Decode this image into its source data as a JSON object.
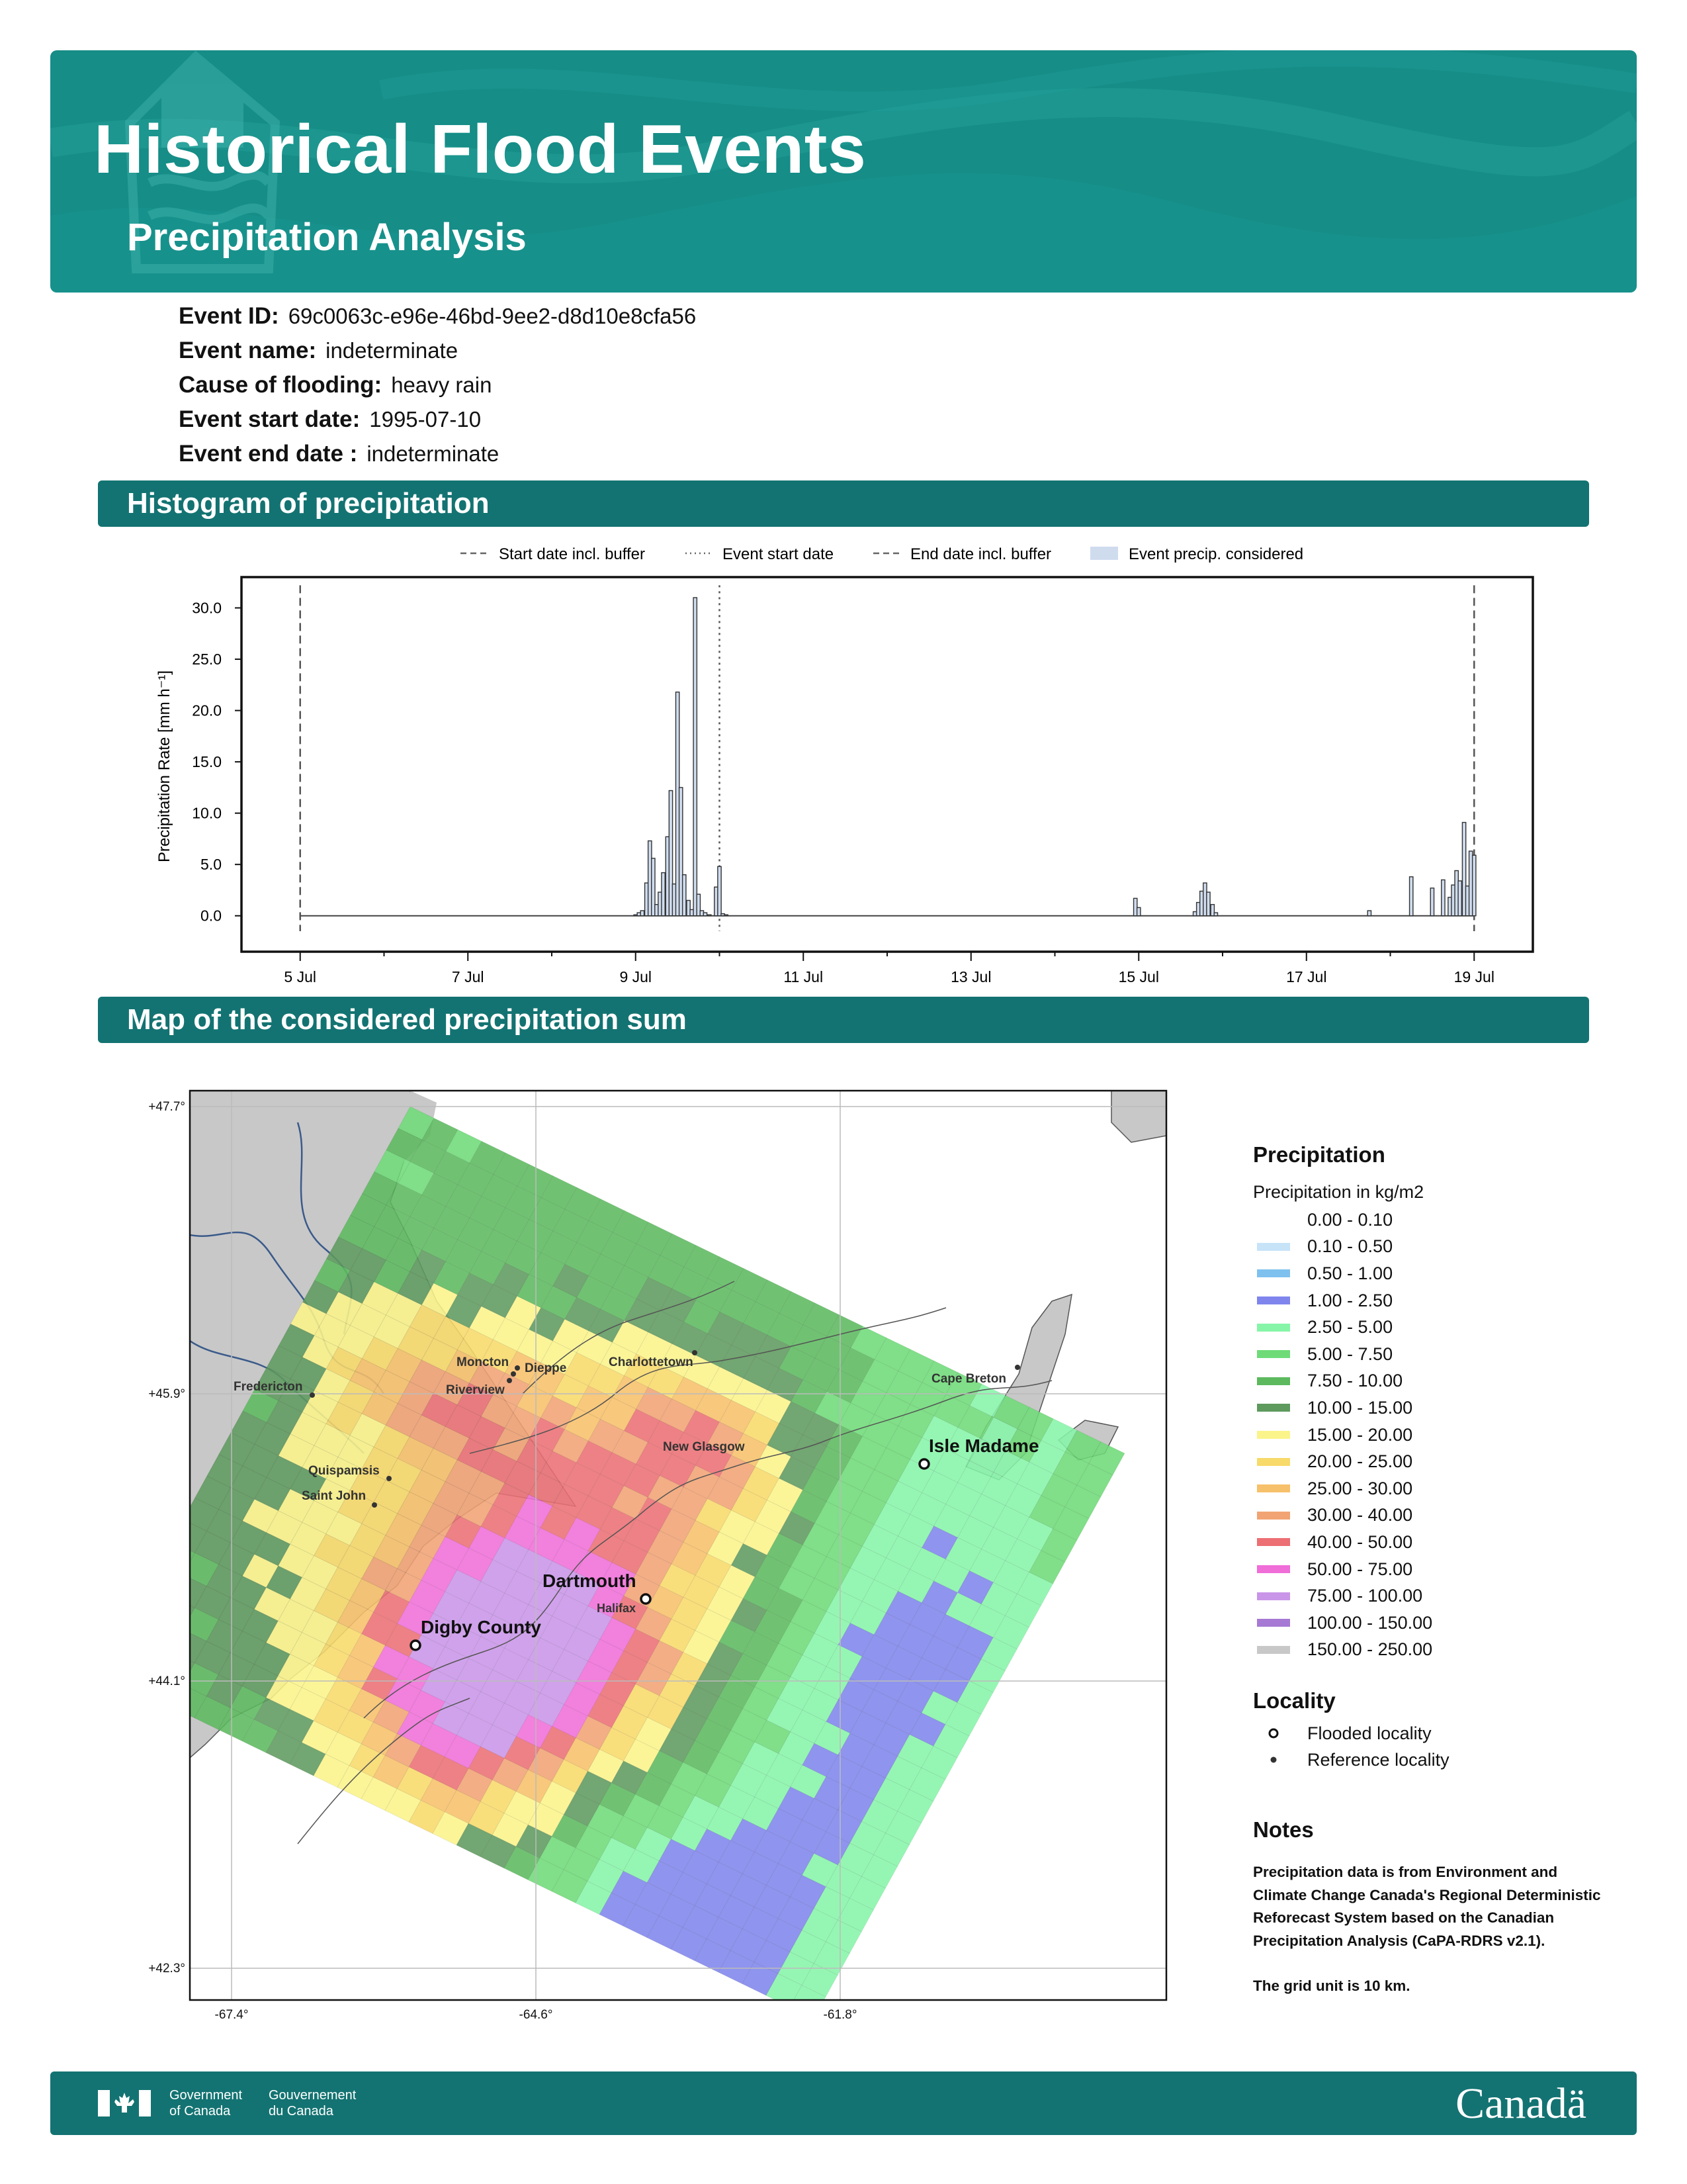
{
  "header": {
    "title": "Historical Flood Events",
    "subtitle": "Precipitation Analysis"
  },
  "event": {
    "id_label": "Event ID:",
    "id_value": "69c0063c-e96e-46bd-9ee2-d8d10e8cfa56",
    "name_label": "Event name:",
    "name_value": "indeterminate",
    "cause_label": "Cause of flooding:",
    "cause_value": "heavy rain",
    "start_label": "Event start date:",
    "start_value": "1995-07-10",
    "end_label": "Event end date :",
    "end_value": "indeterminate"
  },
  "sections": {
    "histogram_title": "Histogram of precipitation",
    "map_title": "Map of the considered precipitation sum"
  },
  "chart_data": {
    "type": "bar",
    "ylabel": "Precipitation Rate [mm h⁻¹]",
    "yticks": [
      "0.0",
      "5.0",
      "10.0",
      "15.0",
      "20.0",
      "25.0",
      "30.0"
    ],
    "ylim": [
      -3.5,
      33
    ],
    "xticks": [
      "5 Jul",
      "7 Jul",
      "9 Jul",
      "11 Jul",
      "13 Jul",
      "15 Jul",
      "17 Jul",
      "19 Jul"
    ],
    "xlim_days": [
      4.3,
      19.7
    ],
    "legend": [
      "Start date incl. buffer",
      "Event start date",
      "End date incl. buffer",
      "Event precip. considered"
    ],
    "legend_position": "top-center",
    "start_buffer_day": 5.0,
    "event_start_day": 10.0,
    "end_buffer_day": 19.0,
    "hours": [
      {
        "d": 9.0,
        "v": 0.1
      },
      {
        "d": 9.04,
        "v": 0.3
      },
      {
        "d": 9.08,
        "v": 0.5
      },
      {
        "d": 9.13,
        "v": 3.2
      },
      {
        "d": 9.17,
        "v": 7.3
      },
      {
        "d": 9.21,
        "v": 5.6
      },
      {
        "d": 9.25,
        "v": 1.1
      },
      {
        "d": 9.29,
        "v": 2.3
      },
      {
        "d": 9.33,
        "v": 4.2
      },
      {
        "d": 9.38,
        "v": 7.7
      },
      {
        "d": 9.42,
        "v": 12.2
      },
      {
        "d": 9.46,
        "v": 3.1
      },
      {
        "d": 9.5,
        "v": 21.8
      },
      {
        "d": 9.54,
        "v": 12.5
      },
      {
        "d": 9.58,
        "v": 4.0
      },
      {
        "d": 9.63,
        "v": 1.5
      },
      {
        "d": 9.67,
        "v": 0.6
      },
      {
        "d": 9.71,
        "v": 31.0
      },
      {
        "d": 9.75,
        "v": 2.1
      },
      {
        "d": 9.79,
        "v": 0.5
      },
      {
        "d": 9.83,
        "v": 0.3
      },
      {
        "d": 9.88,
        "v": 0.1
      },
      {
        "d": 9.96,
        "v": 2.8
      },
      {
        "d": 10.0,
        "v": 4.8
      },
      {
        "d": 10.04,
        "v": 0.2
      },
      {
        "d": 10.08,
        "v": 0.1
      },
      {
        "d": 14.96,
        "v": 1.7
      },
      {
        "d": 15.0,
        "v": 0.8
      },
      {
        "d": 15.67,
        "v": 0.4
      },
      {
        "d": 15.71,
        "v": 1.3
      },
      {
        "d": 15.75,
        "v": 2.4
      },
      {
        "d": 15.79,
        "v": 3.2
      },
      {
        "d": 15.83,
        "v": 2.3
      },
      {
        "d": 15.88,
        "v": 1.1
      },
      {
        "d": 15.92,
        "v": 0.3
      },
      {
        "d": 17.75,
        "v": 0.5
      },
      {
        "d": 18.25,
        "v": 3.8
      },
      {
        "d": 18.5,
        "v": 2.7
      },
      {
        "d": 18.63,
        "v": 3.5
      },
      {
        "d": 18.71,
        "v": 1.8
      },
      {
        "d": 18.75,
        "v": 3.0
      },
      {
        "d": 18.79,
        "v": 4.4
      },
      {
        "d": 18.83,
        "v": 3.4
      },
      {
        "d": 18.88,
        "v": 9.1
      },
      {
        "d": 18.92,
        "v": 2.9
      },
      {
        "d": 18.96,
        "v": 6.3
      },
      {
        "d": 19.0,
        "v": 5.9
      }
    ]
  },
  "map": {
    "lat_labels": [
      "+47.7°",
      "+45.9°",
      "+44.1°",
      "+42.3°"
    ],
    "lon_labels": [
      "-67.4°",
      "-64.6°",
      "-61.8°"
    ],
    "places": {
      "moncton": "Moncton",
      "dieppe": "Dieppe",
      "riverview": "Riverview",
      "charlottetown": "Charlottetown",
      "fredericton": "Fredericton",
      "cape_breton": "Cape Breton",
      "new_glasgow": "New Glasgow",
      "isle_madame": "Isle Madame",
      "quispamsis": "Quispamsis",
      "saint_john": "Saint John",
      "dartmouth": "Dartmouth",
      "halifax": "Halifax",
      "digby_county": "Digby County"
    }
  },
  "legend": {
    "heading": "Precipitation",
    "subheading": "Precipitation in kg/m2",
    "bins": [
      {
        "label": "0.00 - 0.10",
        "color": "#ffffff"
      },
      {
        "label": "0.10 - 0.50",
        "color": "#c6e3f8"
      },
      {
        "label": "0.50 - 1.00",
        "color": "#7fc1ee"
      },
      {
        "label": "1.00 - 2.50",
        "color": "#7f85ec"
      },
      {
        "label": "2.50 - 5.00",
        "color": "#86f5a8"
      },
      {
        "label": "5.00 - 7.50",
        "color": "#6edb78"
      },
      {
        "label": "7.50 - 10.00",
        "color": "#5cb95e"
      },
      {
        "label": "10.00 - 15.00",
        "color": "#5e9a5e"
      },
      {
        "label": "15.00 - 20.00",
        "color": "#fbf48a"
      },
      {
        "label": "20.00 - 25.00",
        "color": "#f8da6a"
      },
      {
        "label": "25.00 - 30.00",
        "color": "#f7c06a"
      },
      {
        "label": "30.00 - 40.00",
        "color": "#f1a374"
      },
      {
        "label": "40.00 - 50.00",
        "color": "#ec6f74"
      },
      {
        "label": "50.00 - 75.00",
        "color": "#f06ed8"
      },
      {
        "label": "75.00 - 100.00",
        "color": "#c995e8"
      },
      {
        "label": "100.00 - 150.00",
        "color": "#a67ad4"
      },
      {
        "label": "150.00 - 250.00",
        "color": "#c8c8c8"
      }
    ],
    "locality_heading": "Locality",
    "flooded": "Flooded locality",
    "reference": "Reference locality"
  },
  "notes": {
    "heading": "Notes",
    "text": "Precipitation data is from Environment and Climate Change Canada's Regional Deterministic Reforecast System based on the Canadian Precipitation Analysis (CaPA-RDRS v2.1).",
    "grid": "The grid unit is 10 km."
  },
  "footer": {
    "gov_en_1": "Government",
    "gov_en_2": "of Canada",
    "gov_fr_1": "Gouvernement",
    "gov_fr_2": "du Canada",
    "wordmark": "Canadä"
  },
  "colors": {
    "header_teal": "#168d87",
    "section_teal": "#137372",
    "bar_fill": "#cfdcee",
    "land_grey": "#c8c8c8"
  }
}
